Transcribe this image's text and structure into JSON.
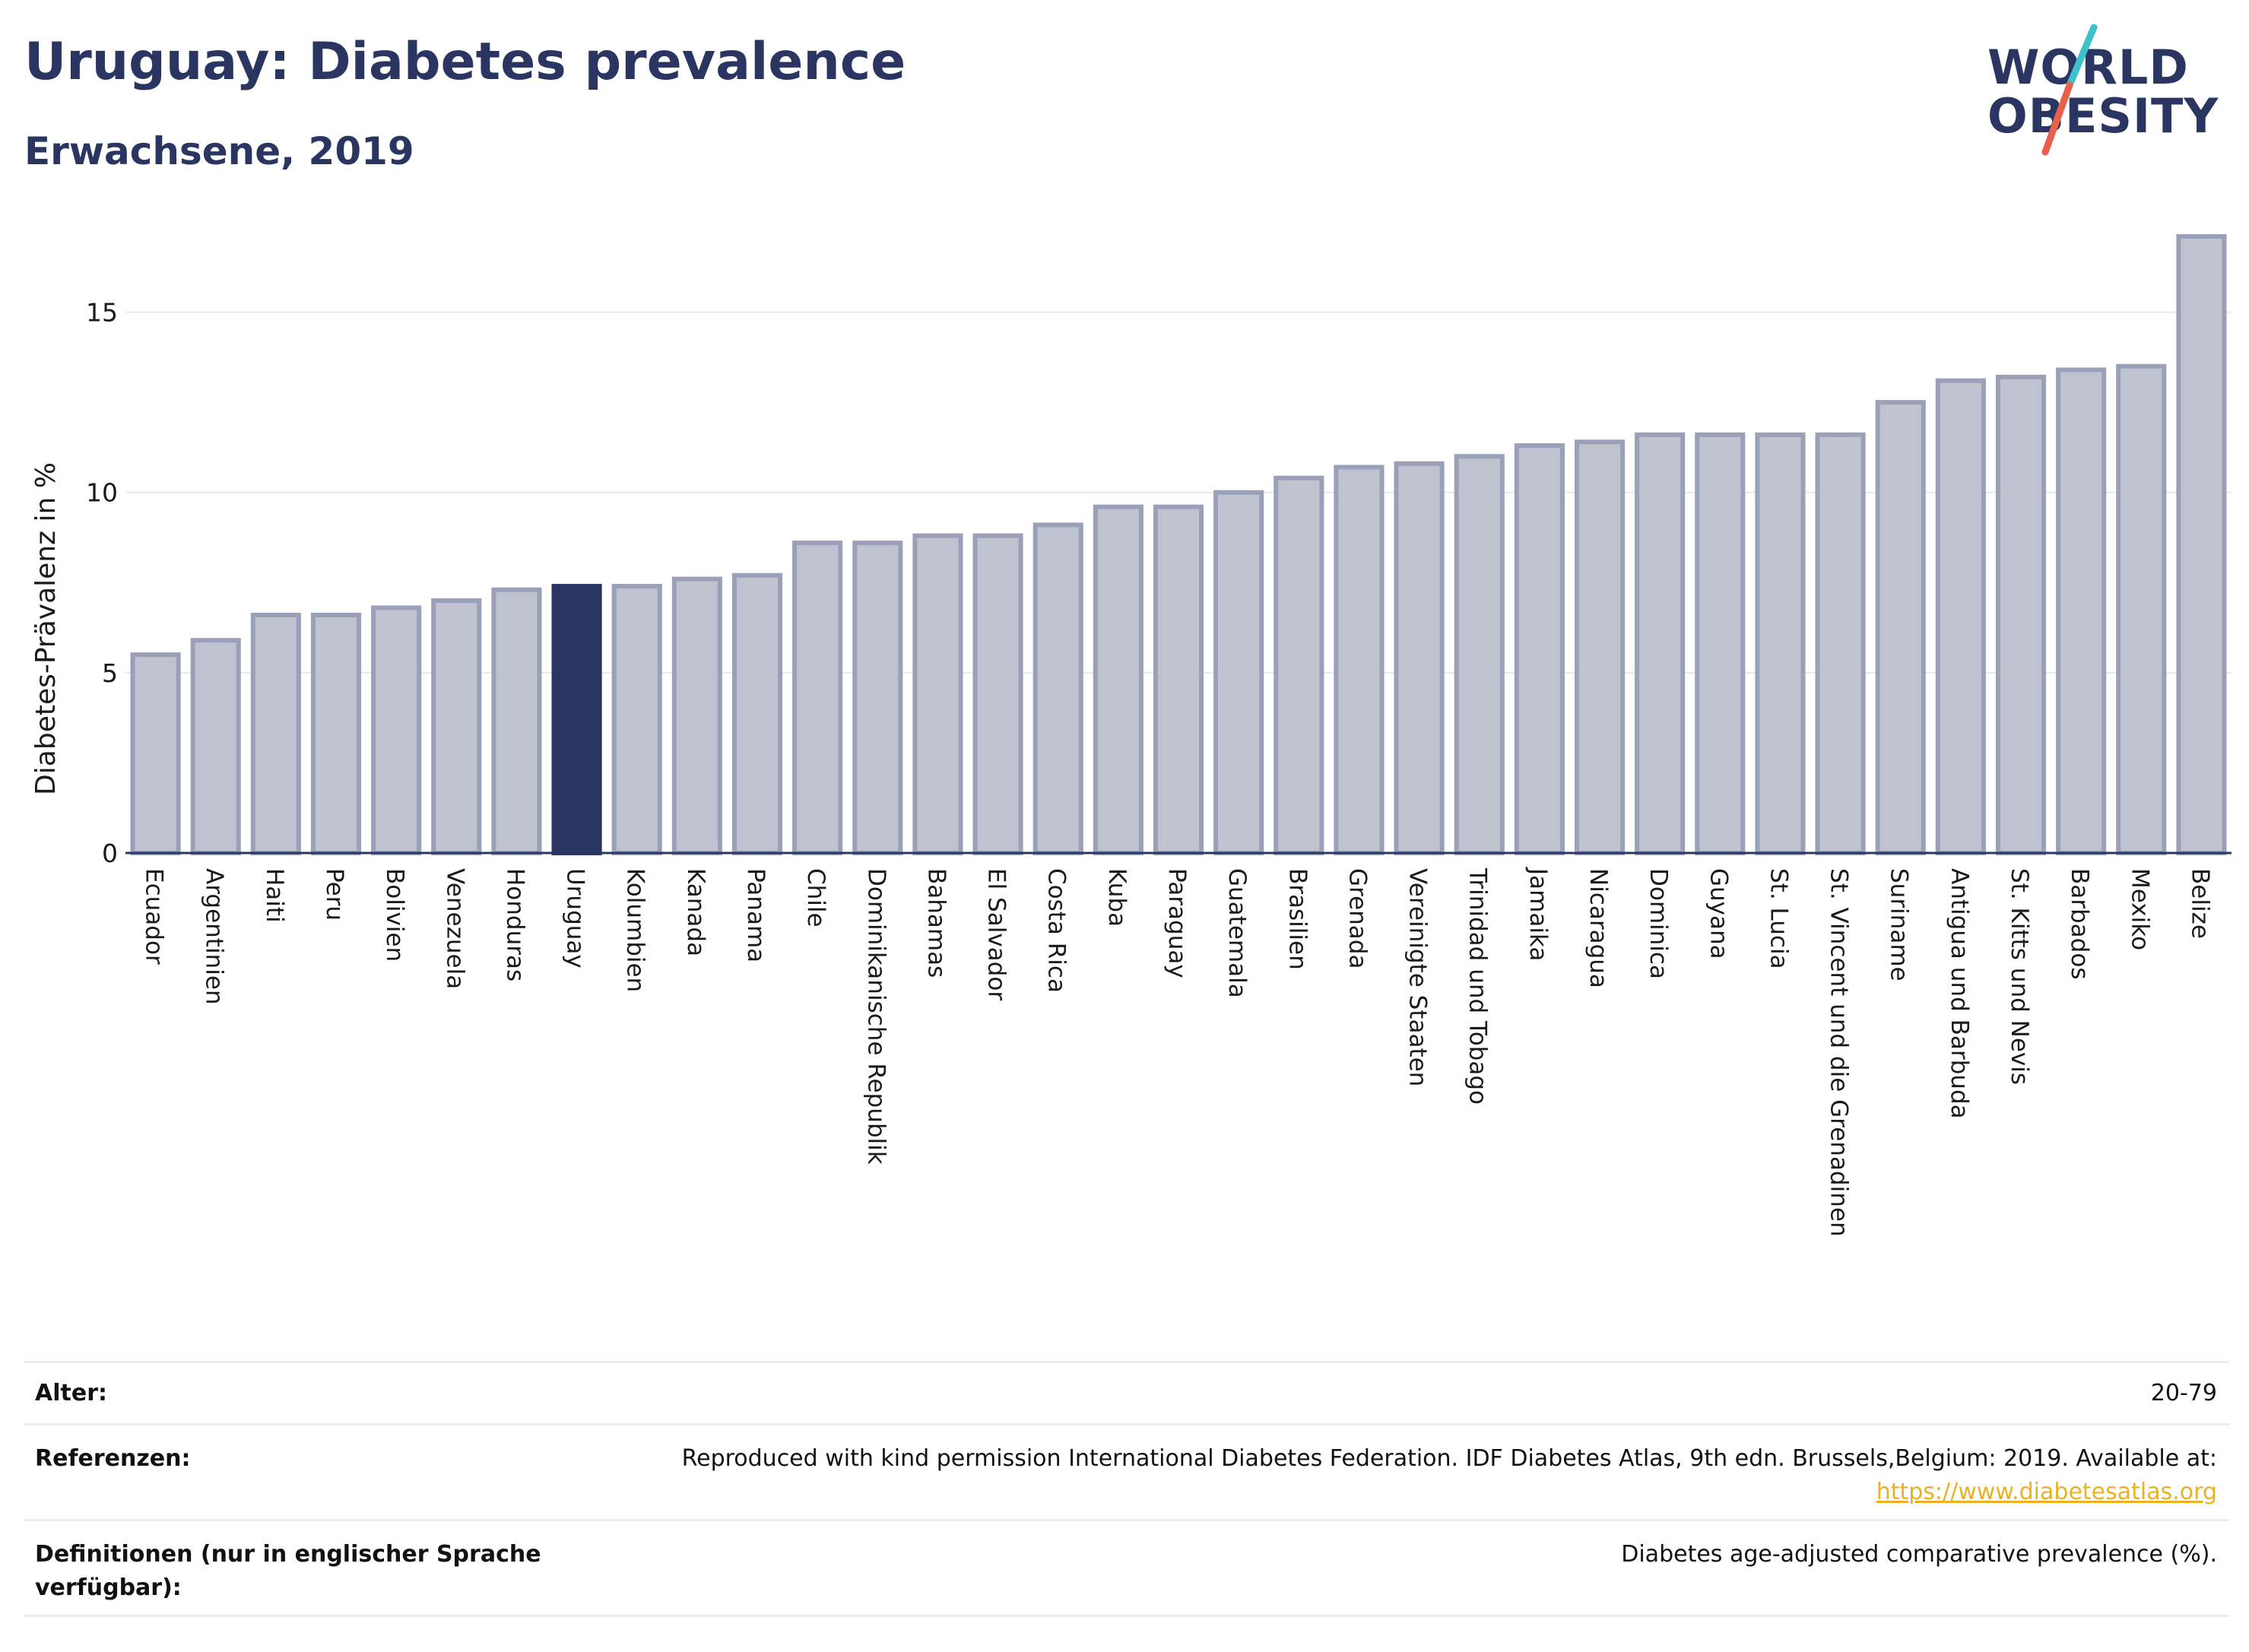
{
  "header": {
    "title": "Uruguay: Diabetes prevalence",
    "subtitle": "Erwachsene, 2019"
  },
  "logo": {
    "line1": "WORLD",
    "line2": "OBESITY",
    "accent_colors": [
      "#3ec1c9",
      "#e8604c"
    ]
  },
  "chart_data": {
    "type": "bar",
    "ylabel": "Diabetes-Prävalenz in %",
    "ylim": [
      0,
      17.5
    ],
    "yticks": [
      0,
      5,
      10,
      15
    ],
    "grid": true,
    "highlight": "Uruguay",
    "colors": {
      "default": "#bfc3d0",
      "default_border": "#9aa0b8",
      "highlight": "#2b3562"
    },
    "categories": [
      "Ecuador",
      "Argentinien",
      "Haiti",
      "Peru",
      "Bolivien",
      "Venezuela",
      "Honduras",
      "Uruguay",
      "Kolumbien",
      "Kanada",
      "Panama",
      "Chile",
      "Dominikanische Republik",
      "Bahamas",
      "El Salvador",
      "Costa Rica",
      "Kuba",
      "Paraguay",
      "Guatemala",
      "Brasilien",
      "Grenada",
      "Vereinigte Staaten",
      "Trinidad und Tobago",
      "Jamaika",
      "Nicaragua",
      "Dominica",
      "Guyana",
      "St. Lucia",
      "St. Vincent und die Grenadinen",
      "Suriname",
      "Antigua und Barbuda",
      "St. Kitts und Nevis",
      "Barbados",
      "Mexiko",
      "Belize"
    ],
    "values": [
      5.5,
      5.9,
      6.6,
      6.6,
      6.8,
      7.0,
      7.3,
      7.4,
      7.4,
      7.6,
      7.7,
      8.6,
      8.6,
      8.8,
      8.8,
      9.1,
      9.6,
      9.6,
      10.0,
      10.4,
      10.7,
      10.8,
      11.0,
      11.3,
      11.4,
      11.6,
      11.6,
      11.6,
      11.6,
      12.5,
      13.1,
      13.2,
      13.4,
      13.5,
      17.1
    ]
  },
  "meta": {
    "age_label": "Alter:",
    "age_value": "20-79",
    "refs_label": "Referenzen:",
    "refs_text": "Reproduced with kind permission International Diabetes Federation. IDF Diabetes Atlas, 9th edn. Brussels,Belgium: 2019. Available at:",
    "refs_link": "https://www.diabetesatlas.org",
    "defs_label": "Definitionen (nur in englischer Sprache verfügbar):",
    "defs_value": "Diabetes age-adjusted comparative prevalence (%)."
  }
}
